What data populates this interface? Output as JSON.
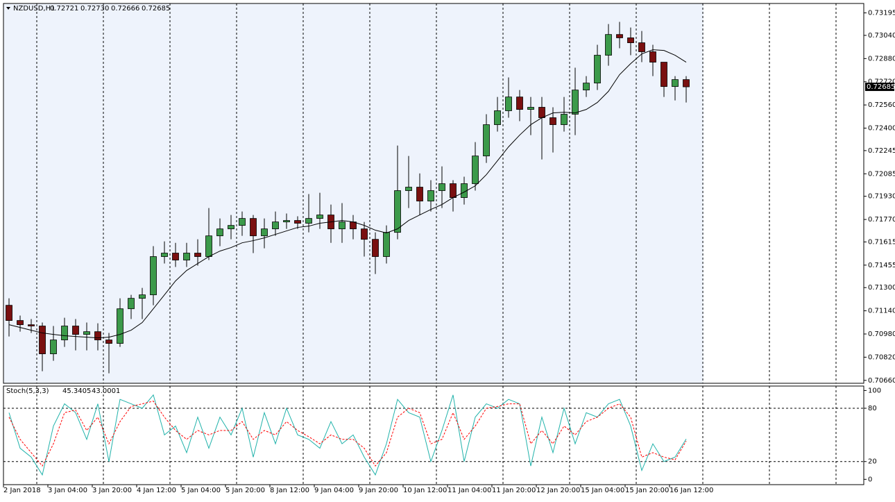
{
  "chart_data": [
    {
      "type": "candlestick",
      "title": "NZDUSD,H1",
      "header_values": [
        "0.72721",
        "0.72730",
        "0.72666",
        "0.72685"
      ],
      "categories": [
        "2 Jan 2018",
        null,
        null,
        null,
        "3 Jan 04:00",
        null,
        null,
        null,
        "3 Jan 20:00",
        null,
        null,
        null,
        "4 Jan 12:00",
        null,
        null,
        null,
        "5 Jan 04:00",
        null,
        null,
        null,
        "5 Jan 20:00",
        null,
        null,
        null,
        "8 Jan 12:00",
        null,
        null,
        null,
        "9 Jan 04:00",
        null,
        null,
        null,
        "9 Jan 20:00",
        null,
        null,
        null,
        "10 Jan 12:00",
        null,
        null,
        null,
        "11 Jan 04:00",
        null,
        null,
        null,
        "11 Jan 20:00",
        null,
        null,
        null,
        "12 Jan 20:00",
        null,
        null,
        null,
        "15 Jan 04:00",
        null,
        null,
        null,
        "15 Jan 20:00",
        null,
        null,
        null,
        "16 Jan 12:00",
        null
      ],
      "open": [
        0.71178,
        0.71073,
        0.71044,
        0.71035,
        0.70843,
        0.70939,
        0.71035,
        0.70977,
        0.70996,
        0.70939,
        0.70915,
        0.71154,
        0.71226,
        0.7125,
        0.71514,
        0.71538,
        0.7149,
        0.71538,
        0.71514,
        0.71657,
        0.71705,
        0.71729,
        0.71777,
        0.71657,
        0.71705,
        0.71753,
        0.71763,
        0.71744,
        0.71777,
        0.71801,
        0.71705,
        0.71753,
        0.71705,
        0.71633,
        0.71514,
        0.71681,
        0.71969,
        0.71993,
        0.71897,
        0.71969,
        0.72017,
        0.71921,
        0.72017,
        0.72208,
        0.72424,
        0.7252,
        0.72615,
        0.72529,
        0.72544,
        0.72472,
        0.72424,
        0.72496,
        0.72663,
        0.72711,
        0.72903,
        0.73046,
        0.73023,
        0.72989,
        0.72927,
        0.72855,
        0.72687,
        0.72735
      ],
      "high": [
        0.71226,
        0.71107,
        0.71083,
        0.71059,
        0.71035,
        0.71092,
        0.71083,
        0.71059,
        0.71054,
        0.70987,
        0.71226,
        0.7125,
        0.71298,
        0.71586,
        0.71619,
        0.71609,
        0.71609,
        0.71633,
        0.71849,
        0.71777,
        0.71801,
        0.71825,
        0.71801,
        0.71777,
        0.71825,
        0.71811,
        0.71792,
        0.71945,
        0.71954,
        0.71873,
        0.71883,
        0.71801,
        0.71753,
        0.71681,
        0.71729,
        0.7228,
        0.72208,
        0.72088,
        0.72041,
        0.72136,
        0.72041,
        0.72065,
        0.72304,
        0.72496,
        0.72615,
        0.7275,
        0.72663,
        0.72615,
        0.72615,
        0.72544,
        0.72615,
        0.72817,
        0.72759,
        0.72975,
        0.73118,
        0.73133,
        0.73094,
        0.7307,
        0.72975,
        0.72855,
        0.72759,
        0.72759
      ],
      "low": [
        0.70963,
        0.70996,
        0.70987,
        0.70723,
        0.70795,
        0.70891,
        0.70867,
        0.70867,
        0.70867,
        0.70709,
        0.70891,
        0.71083,
        0.71083,
        0.71178,
        0.71466,
        0.71442,
        0.71442,
        0.71451,
        0.7149,
        0.71586,
        0.71633,
        0.71657,
        0.71538,
        0.71571,
        0.71657,
        0.71705,
        0.71705,
        0.71681,
        0.71705,
        0.71609,
        0.71609,
        0.71633,
        0.71514,
        0.71394,
        0.71466,
        0.71633,
        0.71849,
        0.71801,
        0.71825,
        0.71849,
        0.71825,
        0.71873,
        0.71969,
        0.7216,
        0.72376,
        0.72472,
        0.72448,
        0.72352,
        0.72184,
        0.72232,
        0.72376,
        0.72352,
        0.72615,
        0.72663,
        0.72831,
        0.72951,
        0.72903,
        0.72855,
        0.72759,
        0.72615,
        0.72591,
        0.72577
      ],
      "close": [
        0.71073,
        0.71044,
        0.71035,
        0.70843,
        0.70939,
        0.71035,
        0.70977,
        0.70996,
        0.70939,
        0.70915,
        0.71154,
        0.71226,
        0.7125,
        0.71514,
        0.71538,
        0.7149,
        0.71538,
        0.71514,
        0.71657,
        0.71705,
        0.71729,
        0.71777,
        0.71657,
        0.71705,
        0.71753,
        0.71763,
        0.71744,
        0.71777,
        0.71801,
        0.71705,
        0.71753,
        0.71705,
        0.71633,
        0.71514,
        0.71681,
        0.71969,
        0.71993,
        0.71897,
        0.71969,
        0.72017,
        0.71921,
        0.72017,
        0.72208,
        0.72424,
        0.7252,
        0.72615,
        0.72529,
        0.72544,
        0.72472,
        0.72424,
        0.72496,
        0.72663,
        0.72711,
        0.72903,
        0.73046,
        0.73023,
        0.72989,
        0.72927,
        0.72855,
        0.72687,
        0.72735,
        0.72685
      ],
      "bull_color": "#3c9a4a",
      "bear_color": "#7a1010",
      "overlay": {
        "color": "#000000",
        "values": [
          0.71044,
          0.71025,
          0.71006,
          0.70987,
          0.70977,
          0.70968,
          0.70963,
          0.70958,
          0.70953,
          0.70958,
          0.70977,
          0.71006,
          0.71059,
          0.71154,
          0.7125,
          0.71346,
          0.71418,
          0.71466,
          0.71514,
          0.71552,
          0.71576,
          0.71609,
          0.71624,
          0.71643,
          0.71667,
          0.71691,
          0.71715,
          0.71724,
          0.71744,
          0.71753,
          0.71763,
          0.71753,
          0.71729,
          0.71696,
          0.71677,
          0.71705,
          0.71763,
          0.71801,
          0.71839,
          0.71873,
          0.71921,
          0.71959,
          0.72002,
          0.72079,
          0.72175,
          0.72271,
          0.72352,
          0.72424,
          0.72472,
          0.72505,
          0.7251,
          0.72505,
          0.72529,
          0.72577,
          0.72654,
          0.72769,
          0.72845,
          0.72912,
          0.72941,
          0.72936,
          0.72903,
          0.72855
        ]
      },
      "current_price": 0.72685,
      "ylim": [
        0.7064,
        0.7326
      ],
      "yticks": [
        0.73195,
        {
          "value": 0.7304,
          "label": "0.73040"
        },
        {
          "value": 0.7288,
          "label": "0.72880"
        },
        {
          "value": 0.7272,
          "label": "0.72720"
        },
        {
          "value": 0.7256,
          "label": "0.72560"
        },
        {
          "value": 0.724,
          "label": "0.72400"
        },
        0.72245,
        {
          "value": 0.72085,
          "label": "0.72085"
        },
        {
          "value": 0.7193,
          "label": "0.71930"
        },
        {
          "value": 0.7177,
          "label": "0.71770"
        },
        0.71615,
        0.71455,
        {
          "value": 0.713,
          "label": "0.71300"
        },
        {
          "value": 0.7114,
          "label": "0.71140"
        },
        {
          "value": 0.7098,
          "label": "0.70980"
        },
        {
          "value": 0.7082,
          "label": "0.70820"
        },
        {
          "value": 0.7066,
          "label": "0.70660"
        }
      ]
    },
    {
      "type": "line",
      "title": "Stoch(5,3,3)",
      "series": [
        {
          "color": "#20b2aa",
          "dashed": false,
          "values": [
            75,
            35,
            25,
            5,
            60,
            85,
            75,
            45,
            85,
            20,
            90,
            85,
            80,
            95,
            50,
            60,
            30,
            70,
            35,
            70,
            50,
            80,
            25,
            75,
            40,
            80,
            50,
            45,
            35,
            65,
            40,
            50,
            25,
            5,
            40,
            90,
            75,
            70,
            20,
            55,
            95,
            20,
            70,
            85,
            80,
            90,
            85,
            15,
            70,
            30,
            80,
            40,
            75,
            70,
            85,
            90,
            60,
            10,
            40,
            20,
            25,
            45.3405
          ]
        },
        {
          "color": "#ff0000",
          "dashed": true,
          "values": [
            70,
            45,
            30,
            15,
            40,
            75,
            78,
            55,
            70,
            40,
            65,
            82,
            85,
            88,
            70,
            55,
            45,
            55,
            50,
            55,
            55,
            65,
            45,
            55,
            50,
            65,
            55,
            48,
            40,
            50,
            45,
            45,
            35,
            15,
            30,
            70,
            80,
            75,
            40,
            45,
            75,
            45,
            60,
            80,
            82,
            85,
            85,
            40,
            55,
            40,
            60,
            50,
            65,
            70,
            80,
            85,
            70,
            25,
            30,
            25,
            22,
            43.0001
          ]
        }
      ],
      "ylim": [
        -6,
        105
      ],
      "yticks": [
        0,
        20,
        80,
        100
      ]
    }
  ]
}
